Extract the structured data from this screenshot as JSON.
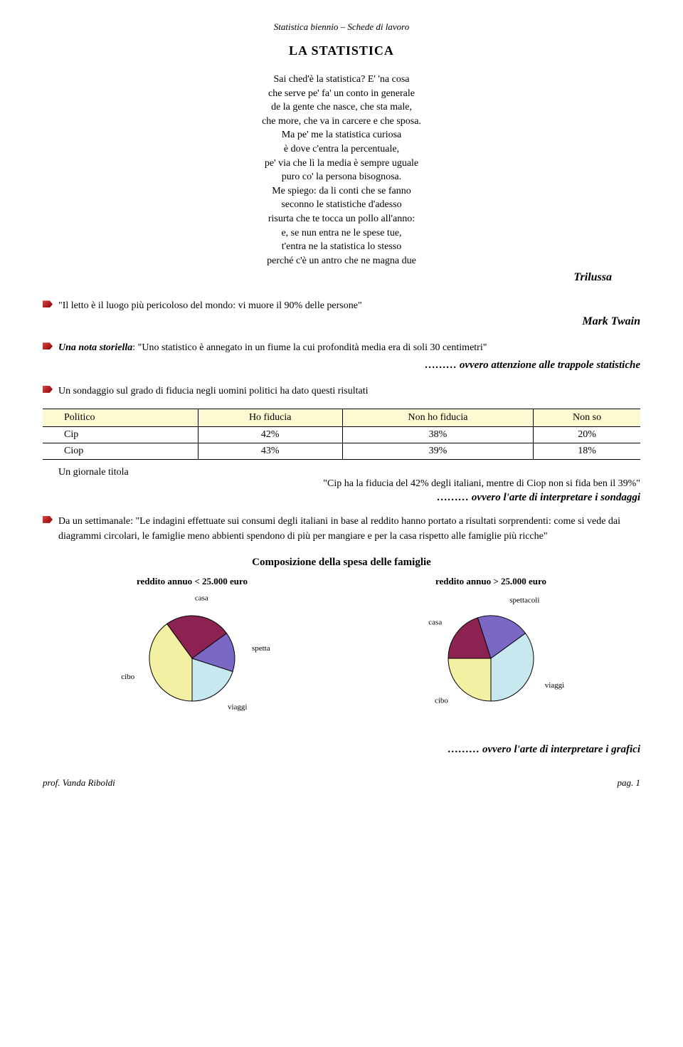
{
  "header": "Statistica biennio – Schede di lavoro",
  "title": "LA STATISTICA",
  "poem": {
    "lines": [
      "Sai ched'è la statistica? E' 'na cosa",
      "che serve pe' fa' un conto in generale",
      "de la gente che nasce, che sta male,",
      "che more, che va in carcere e che sposa.",
      "Ma pe' me la statistica curiosa",
      "è dove c'entra la percentuale,",
      "pe' via che lì la media è sempre uguale",
      "puro co' la persona bisognosa.",
      "Me spiego: da li conti che se fanno",
      "seconno le statistiche d'adesso",
      "risurta che te tocca un pollo all'anno:",
      "e, se nun entra ne le spese tue,",
      "t'entra ne la statistica lo stesso",
      "perché c'è un antro che ne magna due"
    ],
    "author": "Trilussa"
  },
  "quote1": {
    "text": "\"Il letto è il luogo più pericoloso del mondo: vi muore il 90% delle persone\"",
    "author": "Mark Twain"
  },
  "storiella": {
    "prefix": "Una nota storiella",
    "body": ": \"Uno statistico è annegato in un fiume la cui profondità media era di soli 30 centimetri\"",
    "moral": "……… ovvero attenzione alle trappole statistiche"
  },
  "sondaggio": {
    "intro": "Un sondaggio sul grado di fiducia negli uomini politici ha dato questi risultati",
    "table": {
      "headers": [
        "Politico",
        "Ho fiducia",
        "Non ho fiducia",
        "Non so"
      ],
      "rows": [
        [
          "Cip",
          "42%",
          "38%",
          "20%"
        ],
        [
          "Ciop",
          "43%",
          "39%",
          "18%"
        ]
      ]
    },
    "giornale": "Un giornale titola",
    "headline": "\"Cip ha la fiducia del 42% degli italiani, mentre di Ciop non si fida ben il 39%\"",
    "moral": "……… ovvero l'arte di interpretare i sondaggi"
  },
  "settimanale": {
    "text": "Da un settimanale: \"Le indagini effettuate sui consumi degli italiani in base al reddito hanno portato a risultati sorprendenti: come si vede dai diagrammi circolari, le famiglie meno abbienti spendono di più per mangiare e per la casa rispetto alle famiglie più ricche\""
  },
  "charts": {
    "section_title": "Composizione della spesa delle famiglie",
    "left": {
      "title": "reddito annuo < 25.000 euro",
      "slices": [
        {
          "label": "cibo",
          "value": 40,
          "color": "#f4f0a3"
        },
        {
          "label": "casa",
          "value": 25,
          "color": "#8b2252"
        },
        {
          "label": "spettacoli",
          "value": 15,
          "color": "#7b68c4"
        },
        {
          "label": "viaggi",
          "value": 20,
          "color": "#c8e8f0"
        }
      ],
      "radius": 60,
      "border": "#000000"
    },
    "right": {
      "title": "reddito annuo > 25.000 euro",
      "slices": [
        {
          "label": "cibo",
          "value": 25,
          "color": "#f4f0a3"
        },
        {
          "label": "casa",
          "value": 20,
          "color": "#8b2252"
        },
        {
          "label": "spettacoli",
          "value": 20,
          "color": "#7b68c4"
        },
        {
          "label": "viaggi",
          "value": 35,
          "color": "#c8e8f0"
        }
      ],
      "radius": 60,
      "border": "#000000"
    },
    "moral": "……… ovvero l'arte di interpretare i grafici"
  },
  "footer": {
    "left": "prof. Vanda Riboldi",
    "right": "pag. 1"
  }
}
